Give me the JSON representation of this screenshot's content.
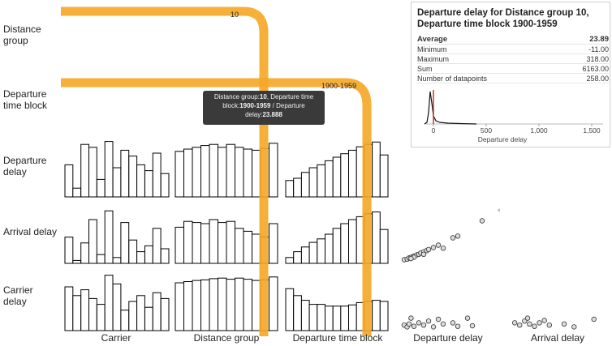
{
  "row_labels": [
    [
      "Distance",
      "group"
    ],
    [
      "Departure",
      "time block"
    ],
    [
      "Departure",
      "delay"
    ],
    [
      "Arrival delay"
    ],
    [
      "Carrier",
      "delay"
    ]
  ],
  "column_labels": [
    "Carrier",
    "Distance group",
    "Departure time block",
    "Departure delay",
    "Arrival delay"
  ],
  "highlight_labels": {
    "distance_group": "10",
    "time_block": "1900-1959"
  },
  "tooltip": {
    "line1_prefix": "Distance group:",
    "line1_value": "10",
    "line1_suffix": ", Departure time",
    "line2_prefix": "block:",
    "line2_value": "1900-1959",
    "line2_suffix": " / Departure",
    "line3_prefix": "delay:",
    "line3_value": "23.888"
  },
  "stats_panel": {
    "title": "Departure delay for Distance group 10, Departure time block 1900-1959",
    "rows": [
      {
        "label": "Average",
        "value": "23.89"
      },
      {
        "label": "Minimum",
        "value": "-11.00"
      },
      {
        "label": "Maximum",
        "value": "318.00"
      },
      {
        "label": "Sum",
        "value": "6163.00"
      },
      {
        "label": "Number of datapoints",
        "value": "258.00"
      }
    ],
    "x_tick_labels": [
      "0",
      "500",
      "1,000",
      "1,500"
    ],
    "x_label": "Departure delay",
    "accent_color": "#c0392b"
  },
  "colors": {
    "highlight": "#f5a623",
    "bar_stroke": "#000000",
    "text": "#222222"
  },
  "chart_data": {
    "type": "bar",
    "x_ticks": [
      0,
      500,
      1000,
      1500
    ],
    "density_peak": 40,
    "carrier": {
      "dep_delay": [
        0.55,
        0.15,
        0.9,
        0.85,
        0.3,
        0.95,
        0.5,
        0.8,
        0.7,
        0.55,
        0.45,
        0.75,
        0.4
      ],
      "arr_delay": [
        0.45,
        0.05,
        0.35,
        0.75,
        0.15,
        0.9,
        0.1,
        0.7,
        0.4,
        0.2,
        0.3,
        0.6,
        0.25
      ],
      "car_delay": [
        0.75,
        0.6,
        0.7,
        0.55,
        0.45,
        0.95,
        0.8,
        0.35,
        0.5,
        0.6,
        0.4,
        0.65,
        0.55
      ]
    },
    "distance": {
      "dep_delay": [
        0.78,
        0.82,
        0.85,
        0.88,
        0.9,
        0.85,
        0.9,
        0.85,
        0.82,
        0.8,
        0.83,
        0.92
      ],
      "arr_delay": [
        0.62,
        0.72,
        0.7,
        0.68,
        0.75,
        0.7,
        0.72,
        0.6,
        0.55,
        0.5,
        0.45,
        0.68
      ],
      "car_delay": [
        0.82,
        0.84,
        0.86,
        0.87,
        0.89,
        0.9,
        0.88,
        0.9,
        0.88,
        0.86,
        0.87,
        0.92
      ]
    },
    "time_block": {
      "dep_delay": [
        0.28,
        0.32,
        0.42,
        0.5,
        0.55,
        0.62,
        0.68,
        0.74,
        0.8,
        0.86,
        0.9,
        0.94,
        0.72
      ],
      "arr_delay": [
        0.1,
        0.2,
        0.28,
        0.36,
        0.42,
        0.5,
        0.6,
        0.68,
        0.75,
        0.8,
        0.85,
        0.88,
        0.58
      ],
      "car_delay": [
        0.72,
        0.6,
        0.52,
        0.45,
        0.45,
        0.42,
        0.42,
        0.42,
        0.44,
        0.48,
        0.5,
        0.52,
        0.5
      ]
    },
    "scatter_dep_vs_arr": [
      [
        0.05,
        0.06
      ],
      [
        0.08,
        0.07
      ],
      [
        0.1,
        0.09
      ],
      [
        0.12,
        0.1
      ],
      [
        0.15,
        0.12
      ],
      [
        0.18,
        0.14
      ],
      [
        0.2,
        0.15
      ],
      [
        0.22,
        0.17
      ],
      [
        0.25,
        0.19
      ],
      [
        0.28,
        0.21
      ],
      [
        0.3,
        0.23
      ],
      [
        0.35,
        0.26
      ],
      [
        0.4,
        0.3
      ],
      [
        0.55,
        0.42
      ],
      [
        0.6,
        0.45
      ],
      [
        0.85,
        0.7
      ],
      [
        0.15,
        0.1
      ],
      [
        0.25,
        0.15
      ],
      [
        0.45,
        0.25
      ],
      [
        0.12,
        0.08
      ]
    ],
    "scatter_dep_vs_car": [
      [
        0.05,
        0.08
      ],
      [
        0.08,
        0.05
      ],
      [
        0.1,
        0.1
      ],
      [
        0.15,
        0.06
      ],
      [
        0.2,
        0.12
      ],
      [
        0.25,
        0.08
      ],
      [
        0.3,
        0.15
      ],
      [
        0.35,
        0.05
      ],
      [
        0.45,
        0.1
      ],
      [
        0.6,
        0.06
      ],
      [
        0.7,
        0.2
      ],
      [
        0.75,
        0.07
      ],
      [
        0.55,
        0.12
      ],
      [
        0.12,
        0.2
      ],
      [
        0.4,
        0.18
      ]
    ],
    "scatter_arr_vs_car": [
      [
        0.05,
        0.12
      ],
      [
        0.1,
        0.08
      ],
      [
        0.15,
        0.15
      ],
      [
        0.2,
        0.1
      ],
      [
        0.25,
        0.06
      ],
      [
        0.3,
        0.12
      ],
      [
        0.4,
        0.08
      ],
      [
        0.55,
        0.1
      ],
      [
        0.65,
        0.05
      ],
      [
        0.85,
        0.18
      ],
      [
        0.18,
        0.2
      ],
      [
        0.35,
        0.16
      ]
    ]
  }
}
